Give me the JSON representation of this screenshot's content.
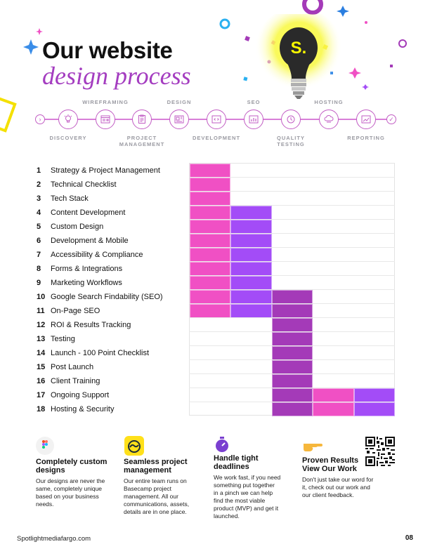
{
  "header": {
    "title_line1": "Our website",
    "title_line2": "design process",
    "logo_letter": "S."
  },
  "process": {
    "top_labels": [
      "WIREFRAMING",
      "DESIGN",
      "SEO",
      "HOSTING"
    ],
    "bottom_labels": [
      "DISCOVERY",
      "PROJECT",
      "MANAGEMENT",
      "DEVELOPMENT",
      "QUALITY",
      "TESTING",
      "REPORTING"
    ]
  },
  "tasks": [
    {
      "num": "1",
      "label": "Strategy & Project Management"
    },
    {
      "num": "2",
      "label": "Technical Checklist"
    },
    {
      "num": "3",
      "label": "Tech Stack"
    },
    {
      "num": "4",
      "label": "Content Development"
    },
    {
      "num": "5",
      "label": "Custom Design"
    },
    {
      "num": "6",
      "label": "Development & Mobile"
    },
    {
      "num": "7",
      "label": "Accessibility & Compliance"
    },
    {
      "num": "8",
      "label": "Forms & Integrations"
    },
    {
      "num": "9",
      "label": "Marketing Workflows"
    },
    {
      "num": "10",
      "label": "Google Search Findability (SEO)"
    },
    {
      "num": "11",
      "label": "On-Page SEO"
    },
    {
      "num": "12",
      "label": "ROI & Results Tracking"
    },
    {
      "num": "13",
      "label": "Testing"
    },
    {
      "num": "14",
      "label": "Launch - 100 Point Checklist"
    },
    {
      "num": "15",
      "label": "Post Launch"
    },
    {
      "num": "16",
      "label": "Client Training"
    },
    {
      "num": "17",
      "label": "Ongoing Support"
    },
    {
      "num": "18",
      "label": "Hosting & Security"
    }
  ],
  "gantt": {
    "colors": {
      "pink": "#f050c4",
      "violet": "#a34cf7",
      "purple": "#a43ab8"
    },
    "cells": [
      [
        1,
        1,
        "pink"
      ],
      [
        2,
        1,
        "pink"
      ],
      [
        3,
        1,
        "pink"
      ],
      [
        4,
        1,
        "pink"
      ],
      [
        4,
        2,
        "violet"
      ],
      [
        5,
        1,
        "pink"
      ],
      [
        5,
        2,
        "violet"
      ],
      [
        6,
        1,
        "pink"
      ],
      [
        6,
        2,
        "violet"
      ],
      [
        7,
        1,
        "pink"
      ],
      [
        7,
        2,
        "violet"
      ],
      [
        8,
        1,
        "pink"
      ],
      [
        8,
        2,
        "violet"
      ],
      [
        9,
        1,
        "pink"
      ],
      [
        9,
        2,
        "violet"
      ],
      [
        10,
        1,
        "pink"
      ],
      [
        10,
        2,
        "violet"
      ],
      [
        10,
        3,
        "purple"
      ],
      [
        11,
        1,
        "pink"
      ],
      [
        11,
        2,
        "violet"
      ],
      [
        11,
        3,
        "purple"
      ],
      [
        12,
        3,
        "purple"
      ],
      [
        13,
        3,
        "purple"
      ],
      [
        14,
        3,
        "purple"
      ],
      [
        15,
        3,
        "purple"
      ],
      [
        16,
        3,
        "purple"
      ],
      [
        17,
        3,
        "purple"
      ],
      [
        17,
        4,
        "pink"
      ],
      [
        17,
        5,
        "violet"
      ],
      [
        18,
        3,
        "purple"
      ],
      [
        18,
        4,
        "pink"
      ],
      [
        18,
        5,
        "violet"
      ]
    ]
  },
  "features": [
    {
      "title_l1": "Completely custom",
      "title_l2": "designs",
      "text": [
        "Our designs are never the",
        "same, completely unique",
        "based on your business",
        "needs."
      ]
    },
    {
      "title_l1": "Seamless project",
      "title_l2": "management",
      "text": [
        "Our entire team runs on",
        "Basecamp project",
        "management. All our",
        "communications, assets,",
        "details are in one place."
      ]
    },
    {
      "title_l1": "Handle tight",
      "title_l2": "deadlines",
      "text": [
        "We work fast, if you need",
        "something put together",
        "in a pinch we can help",
        "find the most viable",
        "product (MVP) and get it",
        "launched."
      ]
    },
    {
      "title_l1": "Proven Results",
      "title_l2": "View Our Work",
      "text": [
        "Don't just take our word for",
        "it, check out our work and",
        "our client feedback."
      ]
    }
  ],
  "footer": {
    "website": "Spotlightmediafargo.com",
    "page": "08"
  }
}
